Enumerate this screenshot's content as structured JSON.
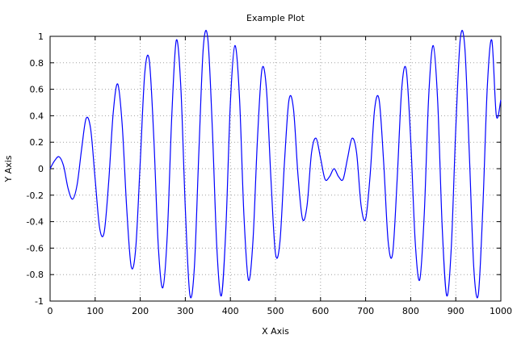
{
  "chart_data": {
    "type": "line",
    "title": "Example Plot",
    "xlabel": "X Axis",
    "ylabel": "Y Axis",
    "xlim": [
      0,
      1000
    ],
    "ylim": [
      -1,
      1
    ],
    "x_ticks": [
      0,
      100,
      200,
      300,
      400,
      500,
      600,
      700,
      800,
      900,
      1000
    ],
    "y_ticks": [
      -1,
      -0.8,
      -0.6,
      -0.4,
      -0.2,
      0,
      0.2,
      0.4,
      0.6,
      0.8,
      1
    ],
    "x_tick_labels": [
      "0",
      "100",
      "200",
      "300",
      "400",
      "500",
      "600",
      "700",
      "800",
      "900",
      "1000"
    ],
    "y_tick_labels": [
      "-1",
      "-0.8",
      "-0.6",
      "-0.4",
      "-0.2",
      "0",
      "0.2",
      "0.4",
      "0.6",
      "0.8",
      "1"
    ],
    "grid": true,
    "grid_style": "dotted",
    "series": [
      {
        "color": "#0000ff",
        "x": [
          0,
          10,
          20,
          30,
          40,
          50,
          60,
          70,
          80,
          90,
          100,
          110,
          120,
          130,
          140,
          150,
          160,
          170,
          180,
          190,
          200,
          210,
          220,
          230,
          240,
          250,
          260,
          270,
          280,
          290,
          300,
          310,
          320,
          330,
          340,
          350,
          360,
          370,
          380,
          390,
          400,
          410,
          420,
          430,
          440,
          450,
          460,
          470,
          480,
          490,
          500,
          510,
          520,
          530,
          540,
          550,
          560,
          570,
          580,
          590,
          600,
          610,
          620,
          630,
          640,
          650,
          660,
          670,
          680,
          690,
          700,
          710,
          720,
          730,
          740,
          750,
          760,
          770,
          780,
          790,
          800,
          810,
          820,
          830,
          840,
          850,
          860,
          870,
          880,
          890,
          900,
          910,
          920,
          930,
          940,
          950,
          960,
          970,
          980,
          990,
          1000
        ],
        "y": [
          0.0,
          0.06,
          0.09,
          0.02,
          -0.15,
          -0.23,
          -0.12,
          0.15,
          0.38,
          0.3,
          -0.08,
          -0.45,
          -0.48,
          -0.1,
          0.42,
          0.64,
          0.33,
          -0.3,
          -0.74,
          -0.6,
          0.05,
          0.72,
          0.82,
          0.24,
          -0.58,
          -0.9,
          -0.5,
          0.4,
          0.97,
          0.62,
          -0.3,
          -0.95,
          -0.75,
          0.12,
          0.92,
          0.98,
          0.3,
          -0.6,
          -0.96,
          -0.45,
          0.5,
          0.93,
          0.55,
          -0.35,
          -0.84,
          -0.55,
          0.22,
          0.75,
          0.6,
          -0.08,
          -0.64,
          -0.55,
          0.05,
          0.52,
          0.45,
          -0.05,
          -0.38,
          -0.28,
          0.12,
          0.23,
          0.08,
          -0.08,
          -0.06,
          0.0,
          -0.06,
          -0.08,
          0.08,
          0.23,
          0.12,
          -0.28,
          -0.38,
          -0.05,
          0.45,
          0.52,
          0.05,
          -0.55,
          -0.64,
          -0.08,
          0.6,
          0.75,
          0.22,
          -0.55,
          -0.84,
          -0.35,
          0.55,
          0.93,
          0.5,
          -0.45,
          -0.96,
          -0.6,
          0.3,
          0.98,
          0.92,
          0.12,
          -0.75,
          -0.95,
          -0.3,
          0.62,
          0.97,
          0.4,
          0.52
        ]
      }
    ]
  }
}
